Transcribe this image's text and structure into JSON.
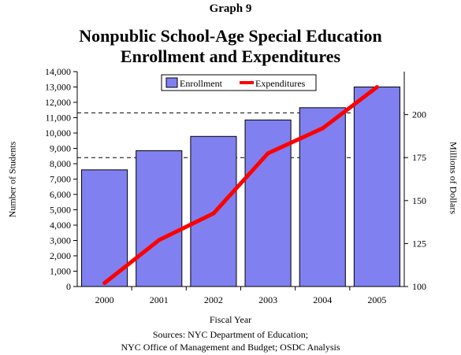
{
  "header": {
    "graph_label": "Graph 9",
    "title_line1": "Nonpublic School-Age Special Education",
    "title_line2": "Enrollment and Expenditures"
  },
  "sources": {
    "line1": "Sources: NYC Department of Education;",
    "line2": "NYC Office of Management and Budget; OSDC Analysis"
  },
  "chart_data": {
    "type": "bar",
    "title": "Nonpublic School-Age Special Education Enrollment and Expenditures",
    "categories": [
      "2000",
      "2001",
      "2002",
      "2003",
      "2004",
      "2005"
    ],
    "xlabel": "Fiscal Year",
    "ylabel": "Number of Students",
    "y2label": "Millions of Dollars",
    "ylim": [
      0,
      14000
    ],
    "y2lim": [
      100,
      225
    ],
    "yticks": [
      "0",
      "1,000",
      "2,000",
      "3,000",
      "4,000",
      "5,000",
      "6,000",
      "7,000",
      "8,000",
      "9,000",
      "10,000",
      "11,000",
      "12,000",
      "13,000",
      "14,000"
    ],
    "y2ticks": [
      "100",
      "125",
      "150",
      "175",
      "200"
    ],
    "series": [
      {
        "name": "Enrollment",
        "type": "bar",
        "axis": "left",
        "color": "#8080f0",
        "values": [
          7600,
          8850,
          9780,
          10850,
          11650,
          13000
        ]
      },
      {
        "name": "Expenditures",
        "type": "line",
        "axis": "right",
        "color": "#ff0000",
        "values": [
          102,
          127,
          142.5,
          177.5,
          192,
          216
        ]
      }
    ],
    "reference_lines": [
      {
        "axis": "right",
        "value": 175,
        "style": "dashed"
      },
      {
        "axis": "right",
        "value": 201,
        "style": "dashed"
      }
    ],
    "legend": "top-right",
    "grid": false
  }
}
